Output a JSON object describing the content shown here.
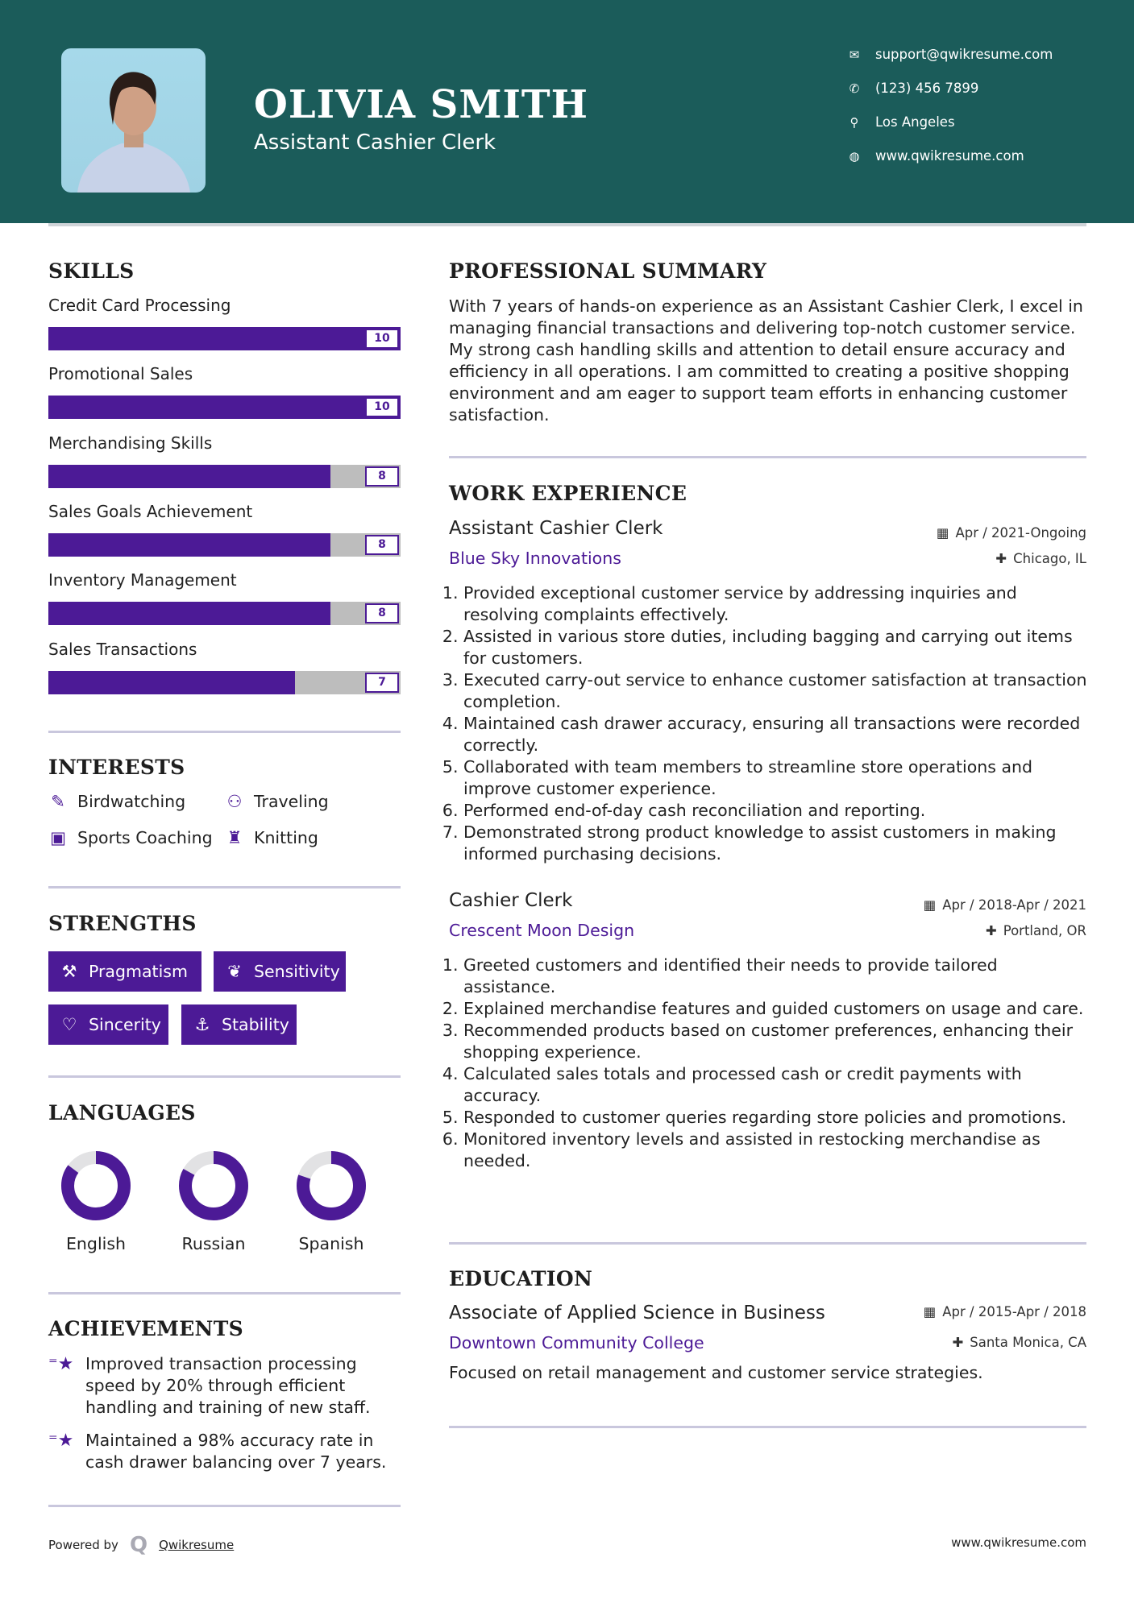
{
  "header": {
    "name": "OLIVIA SMITH",
    "title": "Assistant Cashier Clerk",
    "contacts": [
      {
        "icon": "envelope-icon",
        "text": "support@qwikresume.com"
      },
      {
        "icon": "phone-icon",
        "text": "(123) 456 7899"
      },
      {
        "icon": "map-pin-icon",
        "text": "Los Angeles"
      },
      {
        "icon": "globe-icon",
        "text": "www.qwikresume.com"
      }
    ]
  },
  "colors": {
    "header": "#1b5c5a",
    "accent": "#4c1a96",
    "bar_bg": "#bdbdbd"
  },
  "skills": {
    "heading": "SKILLS",
    "items": [
      {
        "label": "Credit Card Processing",
        "value": "10",
        "level": 10
      },
      {
        "label": "Promotional Sales",
        "value": "10",
        "level": 10
      },
      {
        "label": "Merchandising Skills",
        "value": "8",
        "level": 8
      },
      {
        "label": "Sales Goals Achievement",
        "value": "8",
        "level": 8
      },
      {
        "label": "Inventory Management",
        "value": "8",
        "level": 8
      },
      {
        "label": "Sales Transactions",
        "value": "7",
        "level": 7
      }
    ]
  },
  "interests": {
    "heading": "INTERESTS",
    "items": [
      {
        "icon": "pencil-square-icon",
        "label": "Birdwatching"
      },
      {
        "icon": "binoculars-icon",
        "label": "Traveling"
      },
      {
        "icon": "briefcase-icon",
        "label": "Sports Coaching"
      },
      {
        "icon": "trophy-icon",
        "label": "Knitting"
      }
    ]
  },
  "strengths": {
    "heading": "STRENGTHS",
    "items": [
      {
        "icon": "gavel-icon",
        "label": "Pragmatism"
      },
      {
        "icon": "leaf-icon",
        "label": "Sensitivity"
      },
      {
        "icon": "heart-icon",
        "label": "Sincerity"
      },
      {
        "icon": "anchor-icon",
        "label": "Stability"
      }
    ]
  },
  "languages": {
    "heading": "LANGUAGES",
    "items": [
      {
        "label": "English",
        "level": 0.85
      },
      {
        "label": "Russian",
        "level": 0.83
      },
      {
        "label": "Spanish",
        "level": 0.8
      }
    ]
  },
  "achievements": {
    "heading": "ACHIEVEMENTS",
    "items": [
      "Improved transaction processing speed by 20% through efficient handling and training of new staff.",
      "Maintained a 98% accuracy rate in cash drawer balancing over 7 years."
    ]
  },
  "summary": {
    "heading": "PROFESSIONAL SUMMARY",
    "text": "With 7 years of hands-on experience as an Assistant Cashier Clerk, I excel in managing financial transactions and delivering top-notch customer service. My strong cash handling skills and attention to detail ensure accuracy and efficiency in all operations. I am committed to creating a positive shopping environment and am eager to support team efforts in enhancing customer satisfaction."
  },
  "experience": {
    "heading": "WORK EXPERIENCE",
    "jobs": [
      {
        "title": "Assistant Cashier Clerk",
        "date": "Apr / 2021-Ongoing",
        "company": "Blue Sky Innovations",
        "location": "Chicago, IL",
        "bullets": [
          "Provided exceptional customer service by addressing inquiries and resolving complaints effectively.",
          "Assisted in various store duties, including bagging and carrying out items for customers.",
          "Executed carry-out service to enhance customer satisfaction at transaction completion.",
          "Maintained cash drawer accuracy, ensuring all transactions were recorded correctly.",
          "Collaborated with team members to streamline store operations and improve customer experience.",
          "Performed end-of-day cash reconciliation and reporting.",
          "Demonstrated strong product knowledge to assist customers in making informed purchasing decisions."
        ]
      },
      {
        "title": "Cashier Clerk",
        "date": "Apr / 2018-Apr / 2021",
        "company": "Crescent Moon Design",
        "location": "Portland, OR",
        "bullets": [
          "Greeted customers and identified their needs to provide tailored assistance.",
          "Explained merchandise features and guided customers on usage and care.",
          "Recommended products based on customer preferences, enhancing their shopping experience.",
          "Calculated sales totals and processed cash or credit payments with accuracy.",
          "Responded to customer queries regarding store policies and promotions.",
          "Monitored inventory levels and assisted in restocking merchandise as needed."
        ]
      }
    ]
  },
  "education": {
    "heading": "EDUCATION",
    "degree": "Associate of Applied Science in Business",
    "date": "Apr / 2015-Apr / 2018",
    "school": "Downtown Community College",
    "location": "Santa Monica, CA",
    "description": "Focused on retail management and customer service strategies."
  },
  "footer": {
    "powered_by": "Powered by",
    "brand": "Qwikresume",
    "website": "www.qwikresume.com"
  }
}
